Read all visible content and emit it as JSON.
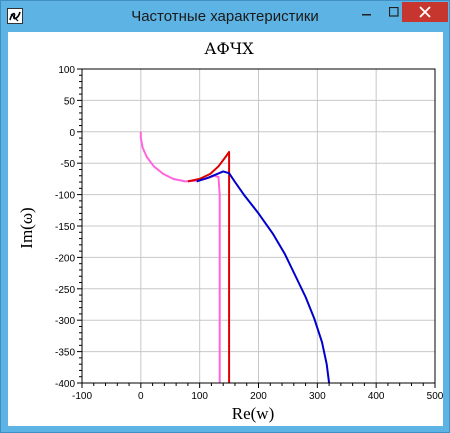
{
  "window": {
    "title": "Частотные характеристики",
    "icon": "app-logo-icon",
    "buttons": {
      "minimize_icon": "minimize-icon",
      "maximize_icon": "maximize-icon",
      "close_icon": "close-icon"
    }
  },
  "chart_data": {
    "type": "line",
    "title": "АФЧХ",
    "xlabel": "Re(w)",
    "ylabel": "Im(ω)",
    "xlim": [
      -100,
      500
    ],
    "ylim": [
      -400,
      100
    ],
    "grid": true,
    "x_ticks": [
      "-100",
      "0",
      "100",
      "200",
      "300",
      "400",
      "500"
    ],
    "y_ticks": [
      "100",
      "50",
      "0",
      "-50",
      "-100",
      "-150",
      "-200",
      "-250",
      "-300",
      "-350",
      "-400"
    ],
    "series": [
      {
        "color": "#ff66dd",
        "points": [
          [
            0,
            0
          ],
          [
            0,
            -10
          ],
          [
            3,
            -25
          ],
          [
            10,
            -40
          ],
          [
            22,
            -55
          ],
          [
            38,
            -67
          ],
          [
            55,
            -75
          ],
          [
            75,
            -79
          ],
          [
            95,
            -78
          ],
          [
            110,
            -75
          ],
          [
            125,
            -70
          ],
          [
            132,
            -72
          ],
          [
            134,
            -100
          ],
          [
            134,
            -200
          ],
          [
            134,
            -300
          ],
          [
            134,
            -400
          ]
        ]
      },
      {
        "color": "#dd0000",
        "points": [
          [
            80,
            -79
          ],
          [
            100,
            -75
          ],
          [
            118,
            -67
          ],
          [
            132,
            -55
          ],
          [
            144,
            -40
          ],
          [
            150,
            -32
          ],
          [
            150,
            -100
          ],
          [
            150,
            -200
          ],
          [
            150,
            -300
          ],
          [
            150,
            -400
          ]
        ]
      },
      {
        "color": "#0000cc",
        "points": [
          [
            95,
            -79
          ],
          [
            115,
            -73
          ],
          [
            130,
            -67
          ],
          [
            140,
            -63
          ],
          [
            150,
            -66
          ],
          [
            160,
            -80
          ],
          [
            175,
            -100
          ],
          [
            200,
            -130
          ],
          [
            225,
            -163
          ],
          [
            245,
            -195
          ],
          [
            262,
            -228
          ],
          [
            280,
            -263
          ],
          [
            295,
            -298
          ],
          [
            308,
            -335
          ],
          [
            316,
            -370
          ],
          [
            320,
            -400
          ]
        ]
      }
    ]
  }
}
